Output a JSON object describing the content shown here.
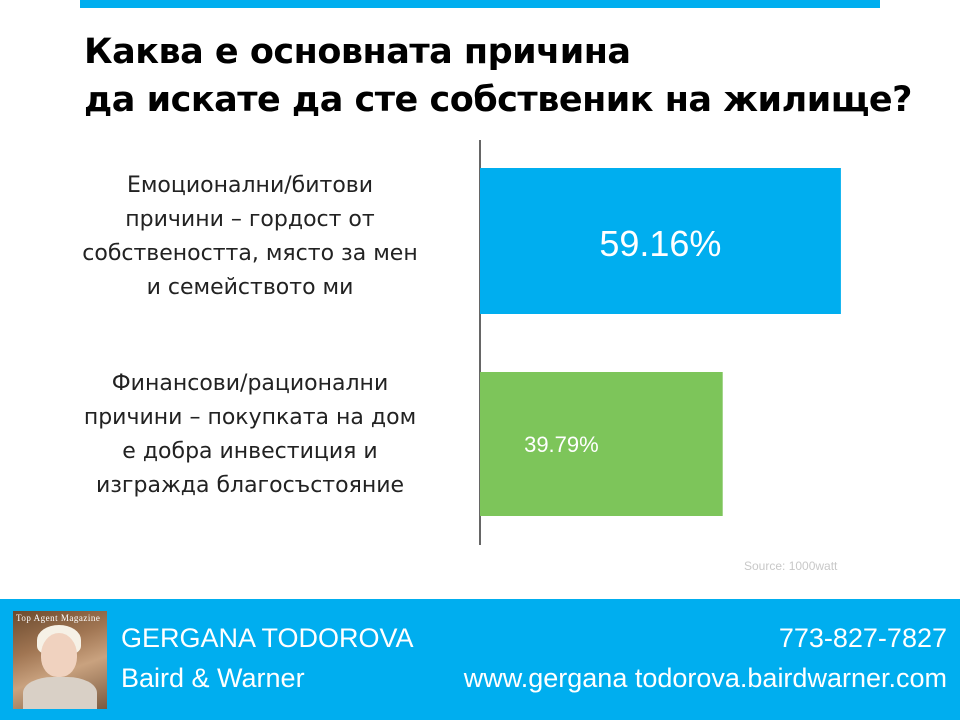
{
  "title": {
    "line1": "Каква е основната причина",
    "line2": "да искате да сте собственик на жилище?"
  },
  "colors": {
    "accent": "#00aeef",
    "bar1": "#00aeef",
    "bar2": "#7dc55a"
  },
  "chart_data": {
    "type": "bar",
    "orientation": "horizontal",
    "categories": [
      [
        "Емоционални/битови",
        "причини – гордост от",
        "собствеността, място за мен",
        "и семейството ми"
      ],
      [
        "Финансови/рационални",
        "причини – покупката на дом",
        "е добра инвестиция и",
        "изгражда благосъстояние"
      ]
    ],
    "values": [
      59.16,
      39.79
    ],
    "data_labels": [
      "59.16%",
      "39.79%"
    ],
    "xlim": [
      0,
      100
    ],
    "grid": false,
    "legend": "none"
  },
  "source": "Source: 1000watt",
  "footer": {
    "photo_caption": "Top Agent Magazine",
    "name": "GERGANA TODOROVA",
    "company": "Baird & Warner",
    "phone": "773-827-7827",
    "website": "www.gergana todorova.bairdwarner.com"
  }
}
